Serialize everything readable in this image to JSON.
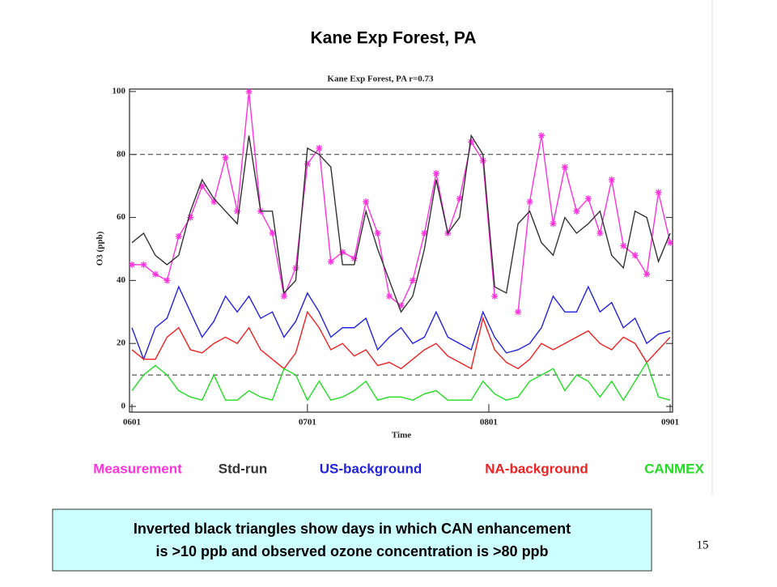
{
  "slide_title": "Kane Exp Forest, PA",
  "note": [
    "Inverted black triangles show days in which CAN enhancement",
    "is >10 ppb and observed ozone concentration is >80 ppb"
  ],
  "page_number": "15",
  "chart_data": {
    "type": "line",
    "title": "Kane Exp Forest, PA   r=0.73",
    "x_label": "Time",
    "y_label": "O3 (ppb)",
    "x": [
      0,
      2,
      4,
      6,
      8,
      10,
      12,
      14,
      16,
      18,
      20,
      22,
      24,
      26,
      28,
      30,
      32,
      34,
      36,
      38,
      40,
      42,
      44,
      46,
      48,
      50,
      52,
      54,
      56,
      58,
      60,
      62,
      64,
      66,
      68,
      70,
      72,
      74,
      76,
      78,
      80,
      82,
      84,
      86,
      88,
      90,
      92
    ],
    "xlim": [
      0,
      92
    ],
    "xticks": [
      {
        "value": 0,
        "label": "0601"
      },
      {
        "value": 30,
        "label": "0701"
      },
      {
        "value": 61,
        "label": "0801"
      },
      {
        "value": 92,
        "label": "0901"
      }
    ],
    "ylim": [
      0,
      100
    ],
    "yticks": [
      0,
      20,
      40,
      60,
      80,
      100
    ],
    "hlines": [
      80,
      10
    ],
    "series": [
      {
        "name": "Measurement",
        "color": "#ff33dd",
        "marker": "asterisk",
        "values": [
          45,
          45,
          42,
          40,
          54,
          60,
          70,
          65,
          79,
          62,
          100,
          62,
          55,
          35,
          44,
          77,
          82,
          46,
          49,
          47,
          65,
          55,
          35,
          32,
          40,
          55,
          74,
          55,
          66,
          84,
          78,
          35,
          null,
          30,
          65,
          86,
          58,
          76,
          62,
          66,
          55,
          72,
          51,
          48,
          42,
          68,
          52
        ]
      },
      {
        "name": "Std-run",
        "color": "#333333",
        "values": [
          52,
          55,
          48,
          45,
          48,
          62,
          72,
          66,
          62,
          58,
          86,
          62,
          62,
          36,
          40,
          82,
          80,
          76,
          45,
          45,
          62,
          50,
          40,
          30,
          35,
          50,
          72,
          55,
          60,
          86,
          80,
          38,
          36,
          58,
          62,
          52,
          48,
          60,
          55,
          58,
          62,
          48,
          44,
          62,
          60,
          46,
          55
        ]
      },
      {
        "name": "US-background",
        "color": "#2222dd",
        "values": [
          25,
          15,
          25,
          28,
          38,
          30,
          22,
          27,
          35,
          30,
          35,
          28,
          30,
          22,
          27,
          36,
          30,
          22,
          25,
          25,
          28,
          18,
          22,
          25,
          20,
          22,
          30,
          22,
          20,
          18,
          30,
          22,
          17,
          18,
          20,
          25,
          35,
          30,
          30,
          38,
          30,
          33,
          25,
          28,
          20,
          23,
          24
        ]
      },
      {
        "name": "NA-background",
        "color": "#ee2222",
        "values": [
          18,
          15,
          15,
          22,
          25,
          18,
          17,
          20,
          22,
          20,
          25,
          18,
          15,
          12,
          17,
          30,
          25,
          18,
          20,
          16,
          18,
          13,
          14,
          12,
          15,
          18,
          20,
          16,
          14,
          12,
          28,
          18,
          14,
          12,
          15,
          20,
          18,
          20,
          22,
          24,
          20,
          18,
          22,
          20,
          14,
          18,
          22
        ]
      },
      {
        "name": "CANMEX",
        "color": "#22dd22",
        "values": [
          5,
          10,
          13,
          10,
          5,
          3,
          2,
          10,
          2,
          2,
          5,
          3,
          2,
          12,
          10,
          2,
          8,
          2,
          3,
          5,
          8,
          2,
          3,
          3,
          2,
          4,
          5,
          2,
          2,
          2,
          8,
          4,
          2,
          3,
          8,
          10,
          12,
          5,
          10,
          8,
          3,
          8,
          2,
          8,
          14,
          3,
          2
        ]
      }
    ]
  }
}
